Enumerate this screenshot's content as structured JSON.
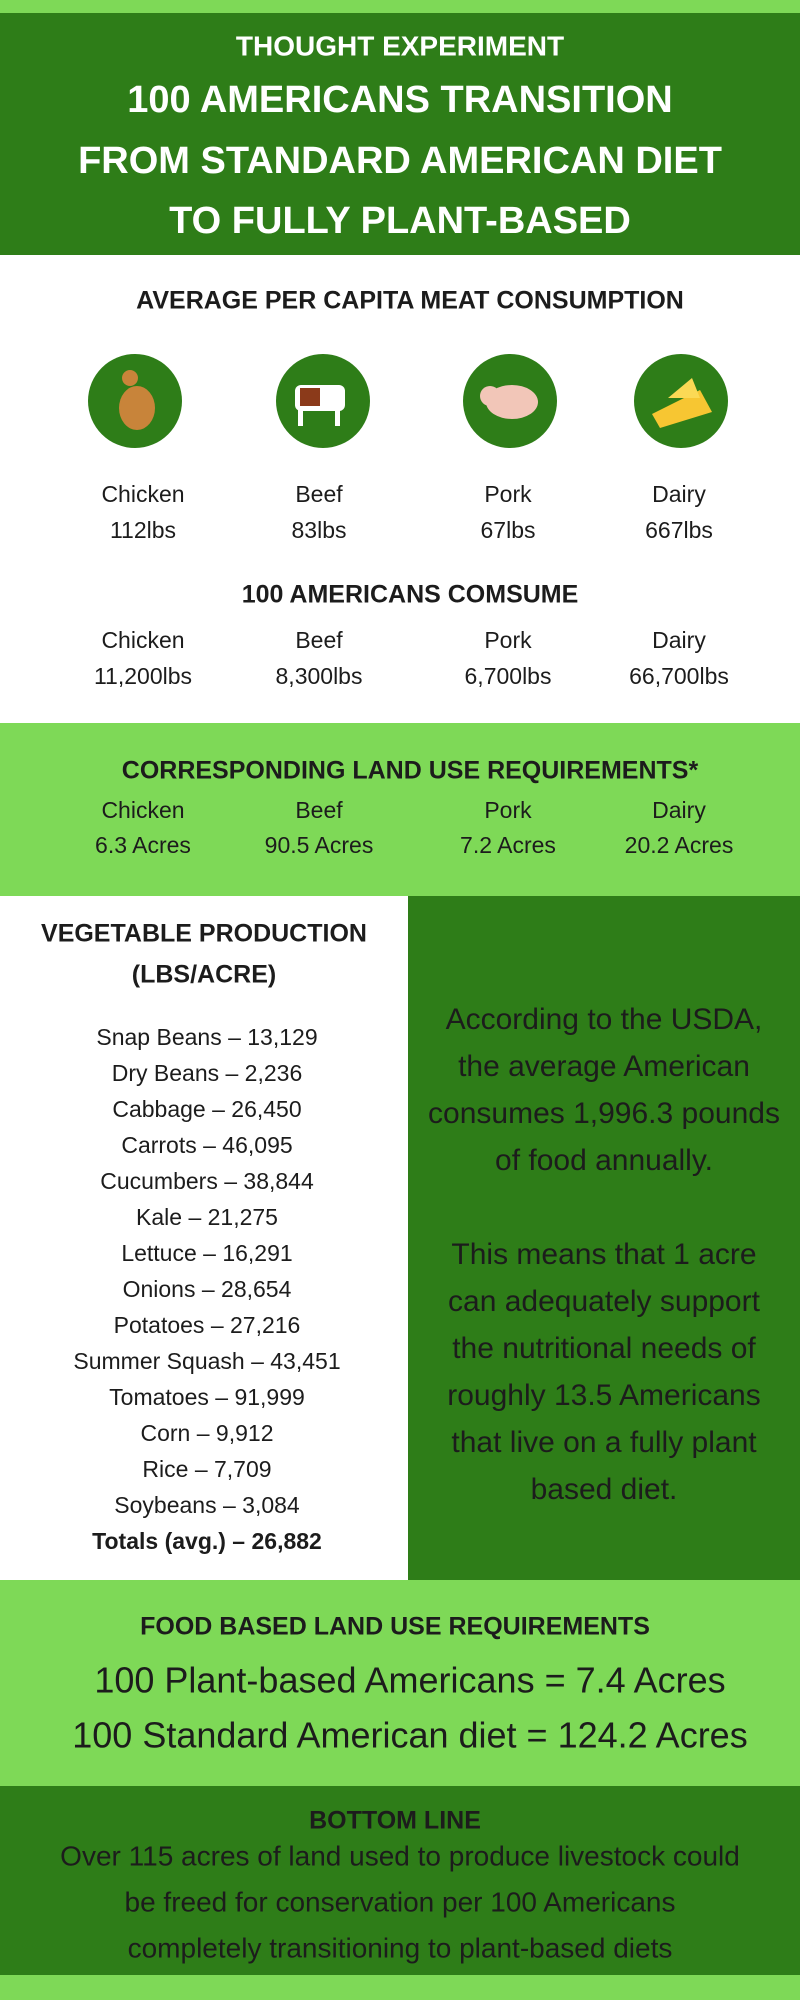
{
  "header": {
    "kicker": "THOUGHT EXPERIMENT",
    "title_lines": [
      "100 AMERICANS TRANSITION",
      "FROM STANDARD AMERICAN DIET",
      "TO FULLY PLANT-BASED"
    ]
  },
  "meat": {
    "heading": "AVERAGE PER CAPITA MEAT CONSUMPTION",
    "items": [
      {
        "label": "Chicken",
        "amount": "112lbs"
      },
      {
        "label": "Beef",
        "amount": "83lbs"
      },
      {
        "label": "Pork",
        "amount": "67lbs"
      },
      {
        "label": "Dairy",
        "amount": "667lbs"
      }
    ]
  },
  "consume": {
    "heading": "100 AMERICANS COMSUME",
    "items": [
      {
        "label": "Chicken",
        "amount": "11,200lbs"
      },
      {
        "label": "Beef",
        "amount": "8,300lbs"
      },
      {
        "label": "Pork",
        "amount": "6,700lbs"
      },
      {
        "label": "Dairy",
        "amount": "66,700lbs"
      }
    ]
  },
  "land": {
    "heading": "CORRESPONDING LAND USE REQUIREMENTS*",
    "items": [
      {
        "label": "Chicken",
        "amount": "6.3 Acres"
      },
      {
        "label": "Beef",
        "amount": "90.5 Acres"
      },
      {
        "label": "Pork",
        "amount": "7.2 Acres"
      },
      {
        "label": "Dairy",
        "amount": "20.2 Acres"
      }
    ]
  },
  "vegetables": {
    "heading_lines": [
      "VEGETABLE PRODUCTION",
      "(LBS/ACRE)"
    ],
    "items": [
      "Snap Beans – 13,129",
      "Dry Beans – 2,236",
      "Cabbage – 26,450",
      "Carrots – 46,095",
      "Cucumbers – 38,844",
      "Kale – 21,275",
      "Lettuce – 16,291",
      "Onions – 28,654",
      "Potatoes – 27,216",
      "Summer Squash – 43,451",
      "Tomatoes – 91,999",
      "Corn – 9,912",
      "Rice – 7,709",
      "Soybeans – 3,084"
    ],
    "total": "Totals (avg.) – 26,882"
  },
  "usda": {
    "paragraph_1": [
      "According to the USDA,",
      "the average American",
      "consumes 1,996.3 pounds",
      "of food annually."
    ],
    "paragraph_2": [
      "This means that 1 acre",
      "can adequately support",
      "the nutritional needs of",
      "roughly 13.5 Americans",
      "that live on a fully plant",
      "based diet."
    ]
  },
  "food_land": {
    "heading": "FOOD BASED LAND USE REQUIREMENTS",
    "lines": [
      "100 Plant-based Americans = 7.4 Acres",
      "100 Standard American diet = 124.2 Acres"
    ]
  },
  "bottom_line": {
    "heading": "BOTTOM LINE",
    "lines": [
      "Over 115 acres of land used to produce livestock could",
      "be freed for conservation per 100 Americans",
      "completely transitioning to plant-based diets"
    ]
  }
}
